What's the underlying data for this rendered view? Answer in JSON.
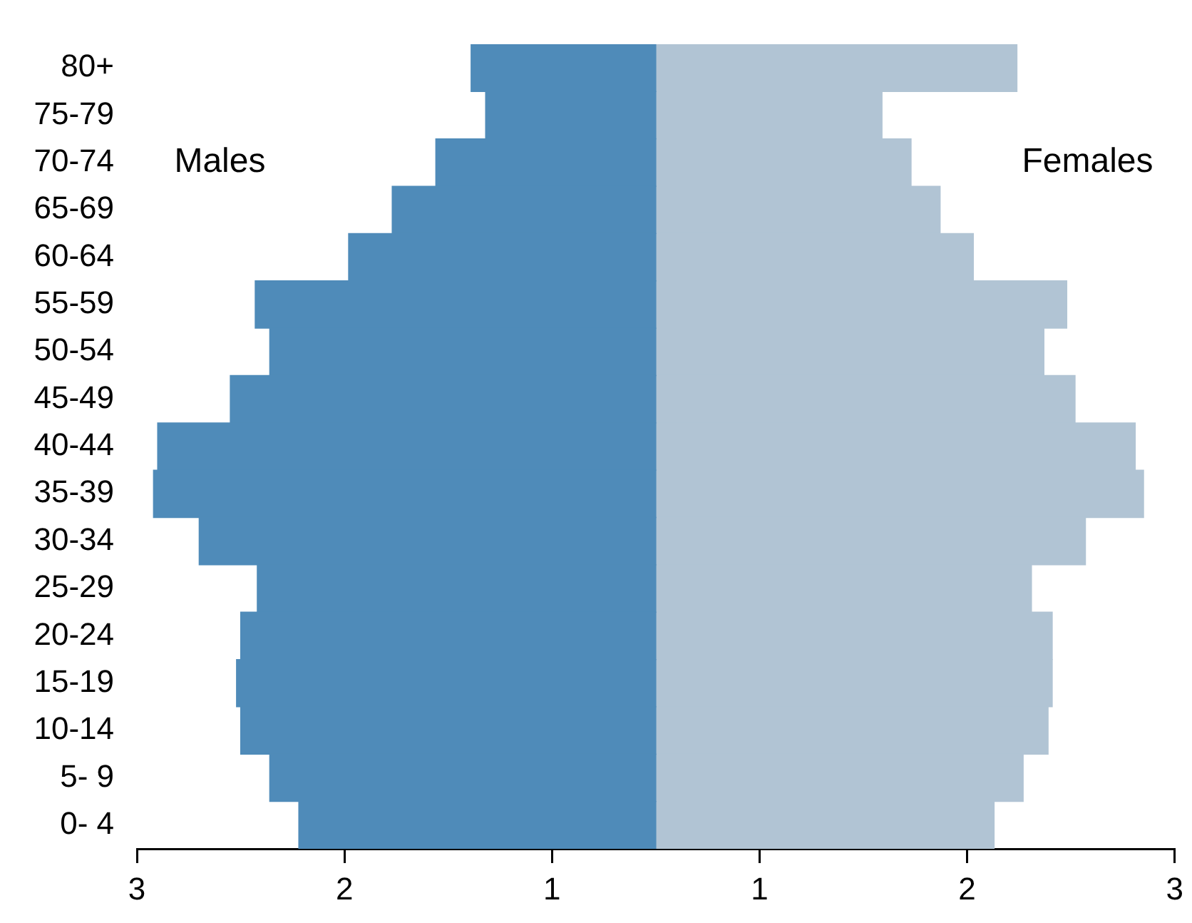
{
  "chart_data": {
    "type": "bar",
    "orientation": "horizontal",
    "stacked": true,
    "legend": false,
    "categories": [
      "80+",
      "75-79",
      "70-74",
      "65-69",
      "60-64",
      "55-59",
      "50-54",
      "45-49",
      "40-44",
      "35-39",
      "30-34",
      "25-29",
      "20-24",
      "15-19",
      "10-14",
      "5- 9",
      "0- 4"
    ],
    "series": [
      {
        "name": "Males",
        "color": "#4f8bb9",
        "values": [
          -0.89,
          -0.82,
          -1.06,
          -1.27,
          -1.48,
          -1.93,
          -1.86,
          -2.05,
          -2.4,
          -2.42,
          -2.2,
          -1.92,
          -2.0,
          -2.02,
          -2.0,
          -1.86,
          -1.72
        ]
      },
      {
        "name": "Females",
        "color": "#b1c4d4",
        "values": [
          1.74,
          1.09,
          1.23,
          1.37,
          1.53,
          1.98,
          1.87,
          2.02,
          2.31,
          2.35,
          2.07,
          1.81,
          1.91,
          1.91,
          1.89,
          1.77,
          1.63
        ]
      }
    ],
    "xlim": [
      -2.5,
      2.5
    ],
    "xticks": [
      {
        "value": -2.5,
        "label": "3"
      },
      {
        "value": -1.5,
        "label": "2"
      },
      {
        "value": -0.5,
        "label": "1"
      },
      {
        "value": 0.5,
        "label": "1"
      },
      {
        "value": 1.5,
        "label": "2"
      },
      {
        "value": 2.5,
        "label": "3"
      }
    ]
  }
}
